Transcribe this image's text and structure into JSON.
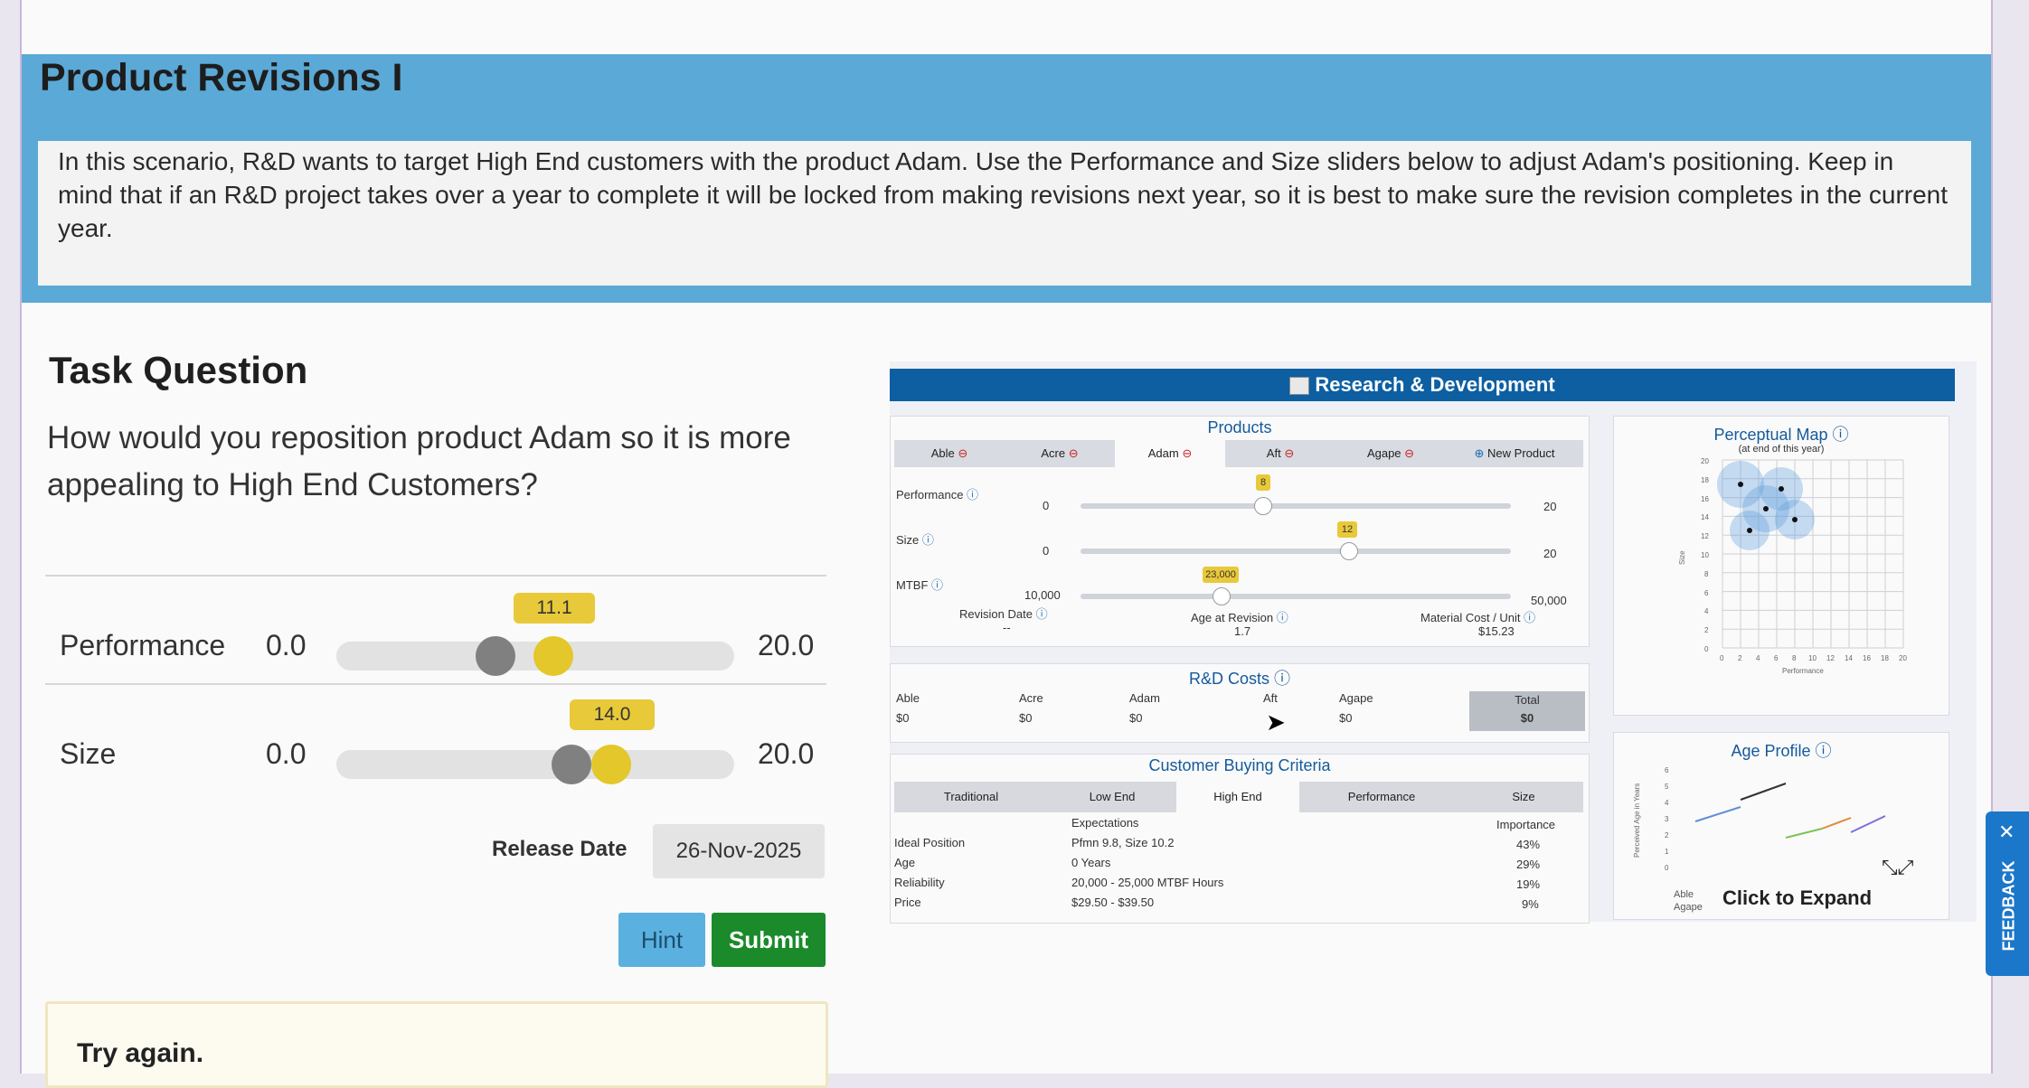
{
  "header": {
    "title": "Product Revisions I",
    "description": "In this scenario, R&D wants to target High End customers with the product Adam. Use the Performance and Size sliders below to adjust Adam's positioning. Keep in mind that if an R&D project takes over a year to complete it will be locked from making revisions next year, so it is best to make sure the revision completes in the current year."
  },
  "task": {
    "title": "Task Question",
    "question": "How would you reposition product Adam so it is more appealing to High End Customers?"
  },
  "sliders": [
    {
      "label": "Performance",
      "min": "0.0",
      "max": "20.0",
      "value": "11.1",
      "fraction": 0.555
    },
    {
      "label": "Size",
      "min": "0.0",
      "max": "20.0",
      "value": "14.0",
      "fraction": 0.7
    }
  ],
  "release": {
    "label": "Release Date",
    "value": "26-Nov-2025"
  },
  "buttons": {
    "hint": "Hint",
    "submit": "Submit"
  },
  "feedback_message": "Try again.",
  "rd": {
    "header": "Research & Development",
    "products": {
      "title": "Products",
      "tabs": [
        "Able",
        "Acre",
        "Adam",
        "Aft",
        "Agape",
        "New Product"
      ],
      "performance": {
        "label": "Performance",
        "min": "0",
        "max": "20",
        "value": "8"
      },
      "size": {
        "label": "Size",
        "min": "0",
        "max": "20",
        "value": "12"
      },
      "mtbf": {
        "label": "MTBF",
        "min": "10,000",
        "max": "50,000",
        "value": "23,000"
      },
      "revision_date": {
        "label": "Revision Date",
        "value": "--"
      },
      "age_at_revision": {
        "label": "Age at Revision",
        "value": "1.7"
      },
      "material_cost": {
        "label": "Material Cost / Unit",
        "value": "$15.23"
      }
    },
    "costs": {
      "title": "R&D Costs",
      "columns": [
        "Able",
        "Acre",
        "Adam",
        "Aft",
        "Agape",
        "Total"
      ],
      "values": [
        "$0",
        "$0",
        "$0",
        "",
        "$0",
        "$0"
      ]
    },
    "criteria": {
      "title": "Customer Buying Criteria",
      "tabs": [
        "Traditional",
        "Low End",
        "High End",
        "Performance",
        "Size"
      ],
      "col_expectations": "Expectations",
      "col_importance": "Importance",
      "rows": [
        {
          "label": "Ideal Position",
          "expectation": "Pfmn 9.8, Size 10.2",
          "importance": "43%"
        },
        {
          "label": "Age",
          "expectation": "0 Years",
          "importance": "29%"
        },
        {
          "label": "Reliability",
          "expectation": "20,000 - 25,000 MTBF Hours",
          "importance": "19%"
        },
        {
          "label": "Price",
          "expectation": "$29.50 - $39.50",
          "importance": "9%"
        }
      ]
    },
    "perceptual_map": {
      "title": "Perceptual Map",
      "subtitle": "(at end of this year)",
      "ylabel": "Size",
      "xlabel": "Performance",
      "y_ticks": [
        "20",
        "18",
        "16",
        "14",
        "12",
        "10",
        "8",
        "6",
        "4",
        "2",
        "0"
      ],
      "x_ticks": [
        "0",
        "2",
        "4",
        "6",
        "8",
        "10",
        "12",
        "14",
        "16",
        "18",
        "20"
      ]
    },
    "age_profile": {
      "title": "Age Profile",
      "ylabel": "Perceived Age in Years",
      "y_ticks": [
        "6",
        "5",
        "4",
        "3",
        "2",
        "1",
        "0"
      ],
      "legend": [
        "Able",
        "Agape"
      ],
      "expand_label": "Click to Expand"
    }
  },
  "feedback_tab": "FEEDBACK"
}
